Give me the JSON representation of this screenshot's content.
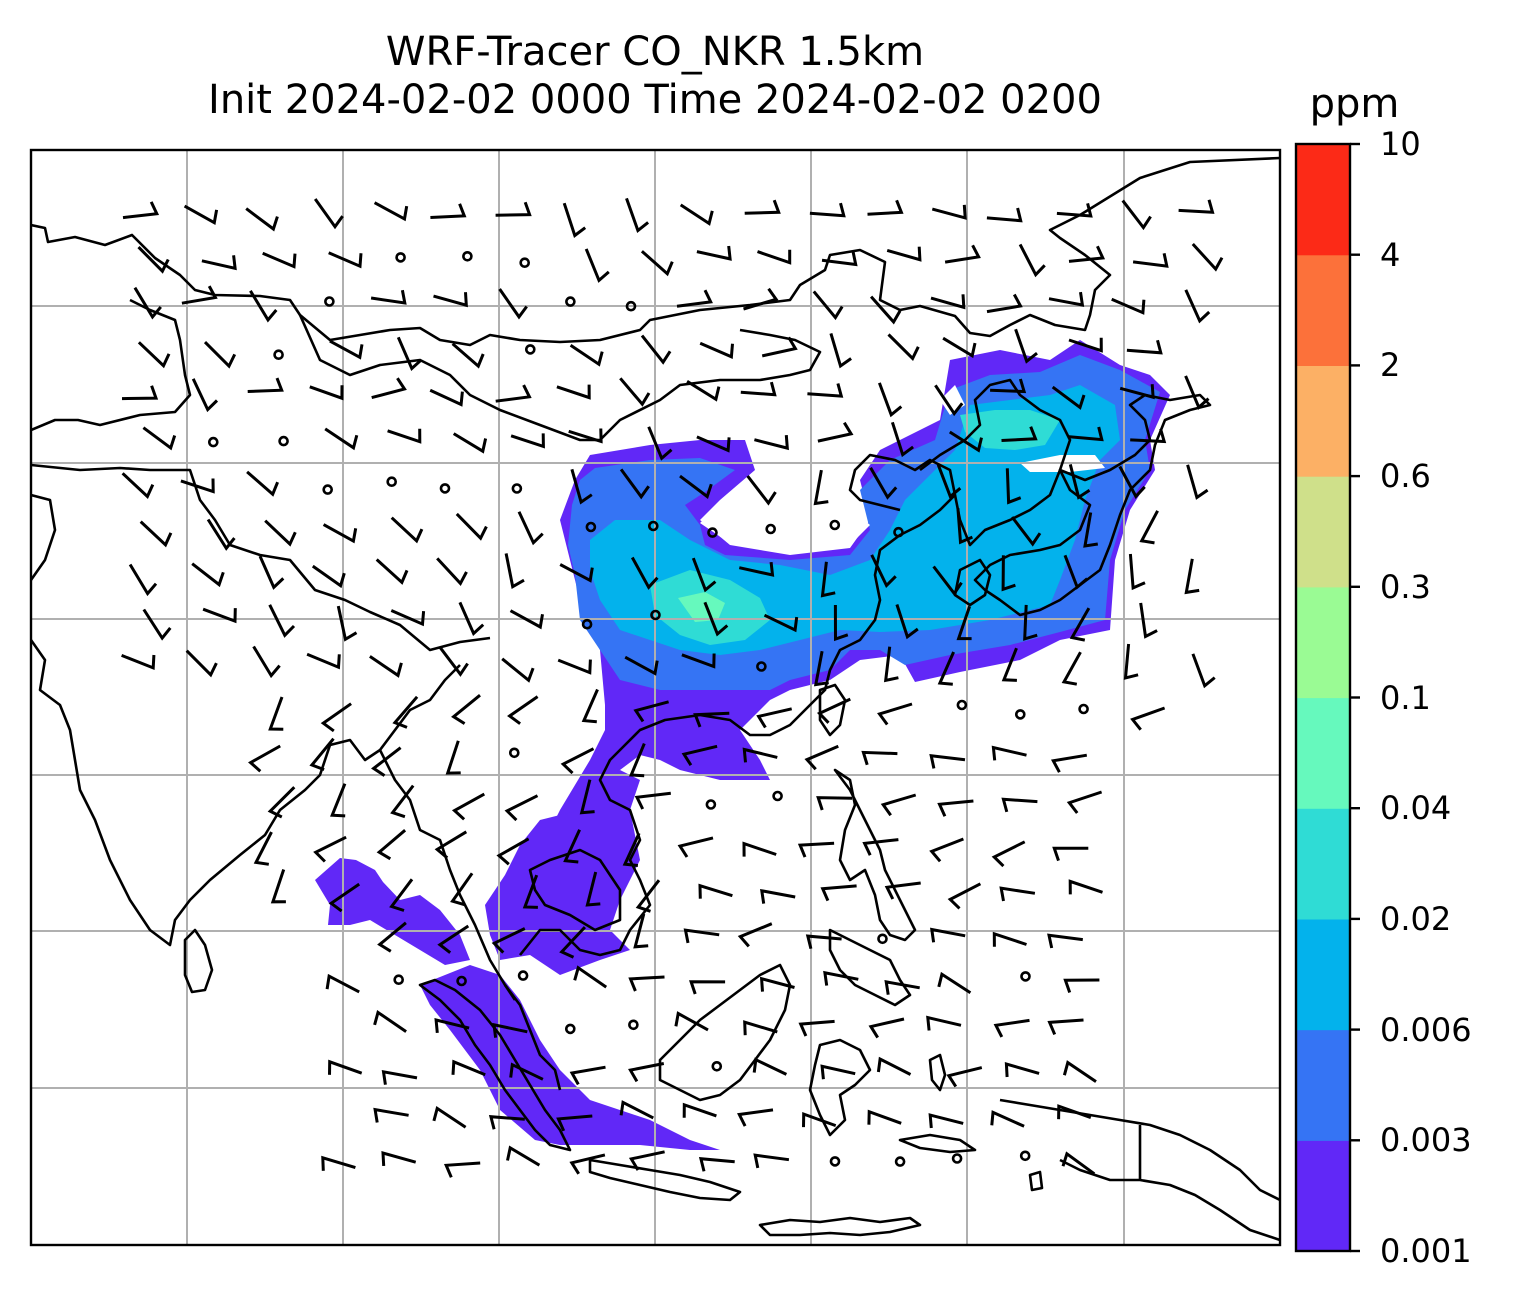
{
  "title": {
    "line1": "WRF-Tracer CO_NKR 1.5km",
    "line2": "Init 2024-02-02 0000 Time 2024-02-02 0200"
  },
  "colorbar": {
    "label": "ppm",
    "ticks": [
      "0.001",
      "0.003",
      "0.006",
      "0.02",
      "0.04",
      "0.1",
      "0.3",
      "0.6",
      "2",
      "4",
      "10"
    ],
    "colors": [
      "#6128f7",
      "#3574f4",
      "#03b2ec",
      "#2fdcd5",
      "#66f9bd",
      "#9afb94",
      "#cfe08a",
      "#fcb065",
      "#fc713a",
      "#fc2a17"
    ]
  },
  "map": {
    "colors": {
      "coastline": "#000000",
      "gridline": "#b0b0b0",
      "barb": "#000000"
    },
    "layers": [
      "gridlines",
      "coastlines",
      "co-tracer-shading",
      "wind-barbs"
    ]
  }
}
